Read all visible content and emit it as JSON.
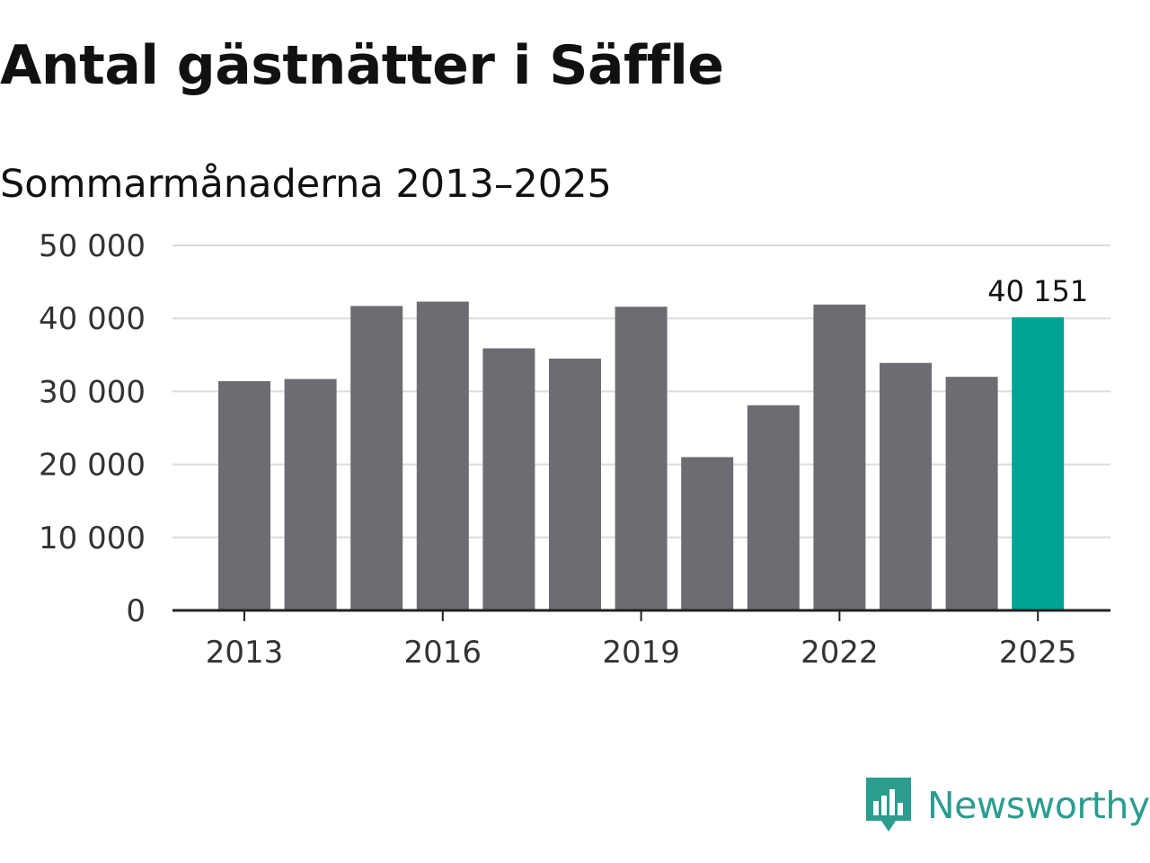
{
  "header": {
    "title": "Antal gästnätter i Säffle",
    "subtitle": "Sommarmånaderna 2013–2025"
  },
  "brand": {
    "name": "Newsworthy",
    "color": "#2a9d8f",
    "icon": "chat-bubble-bar-chart-icon"
  },
  "chart_data": {
    "type": "bar",
    "title": "Antal gästnätter i Säffle",
    "subtitle": "Sommarmånaderna 2013–2025",
    "xlabel": "",
    "ylabel": "",
    "categories": [
      "2013",
      "2014",
      "2015",
      "2016",
      "2017",
      "2018",
      "2019",
      "2020",
      "2021",
      "2022",
      "2023",
      "2024",
      "2025"
    ],
    "values": [
      31400,
      31700,
      41700,
      42300,
      35900,
      34500,
      41600,
      21000,
      28100,
      41900,
      33900,
      32000,
      40151
    ],
    "highlight_index": 12,
    "bar_color": "#6d6c72",
    "highlight_color": "#00a396",
    "ylim": [
      0,
      50000
    ],
    "y_ticks": [
      0,
      10000,
      20000,
      30000,
      40000,
      50000
    ],
    "y_tick_labels": [
      "0",
      "10 000",
      "20 000",
      "30 000",
      "40 000",
      "50 000"
    ],
    "x_tick_labels": [
      "2013",
      "2016",
      "2019",
      "2022",
      "2025"
    ],
    "data_labels": [
      {
        "index": 12,
        "text": "40 151"
      }
    ],
    "grid": true
  }
}
